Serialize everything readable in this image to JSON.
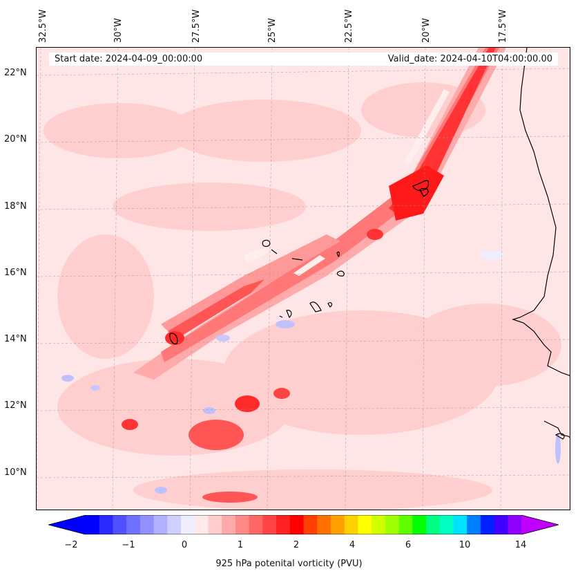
{
  "map": {
    "longitude_labels": [
      "32.5°W",
      "30°W",
      "27.5°W",
      "25°W",
      "22.5°W",
      "20°W",
      "17.5°W"
    ],
    "latitude_labels": [
      "22°N",
      "20°N",
      "18°N",
      "16°N",
      "14°N",
      "12°N",
      "10°N"
    ],
    "start_date": "Start date: 2024-04-09_00:00:00",
    "valid_date": "Valid_date: 2024-04-10T04:00:00.00",
    "colors": {
      "background": "#ffe6e6",
      "light_red": "#ffb3b3",
      "mid_red": "#ff6666",
      "strong_red": "#ff2a2a",
      "pale_blue": "#e6e6ff",
      "blue": "#c0c0ff",
      "coast": "#000000"
    }
  },
  "colorbar": {
    "label": "925 hPa potenital vorticity (PVU)",
    "tick_labels": [
      "−2",
      "−1",
      "0",
      "1",
      "2",
      "4",
      "6",
      "10",
      "14"
    ],
    "segments": [
      "#0000ff",
      "#2a2aff",
      "#5050ff",
      "#7070ff",
      "#9090ff",
      "#b0b0ff",
      "#d0d0ff",
      "#eeeeff",
      "#ffeaea",
      "#ffcccc",
      "#ffaaaa",
      "#ff8888",
      "#ff6666",
      "#ff4444",
      "#ff2222",
      "#ff0000",
      "#ff4000",
      "#ff7000",
      "#ffa000",
      "#ffd000",
      "#ffff00",
      "#d0ff00",
      "#a0ff00",
      "#60ff00",
      "#00ff00",
      "#00ff80",
      "#00ffc0",
      "#00e0ff",
      "#0080ff",
      "#0020ff",
      "#4000ff",
      "#9000ff"
    ],
    "under_color": "#0000ff",
    "over_color": "#c000ff"
  }
}
